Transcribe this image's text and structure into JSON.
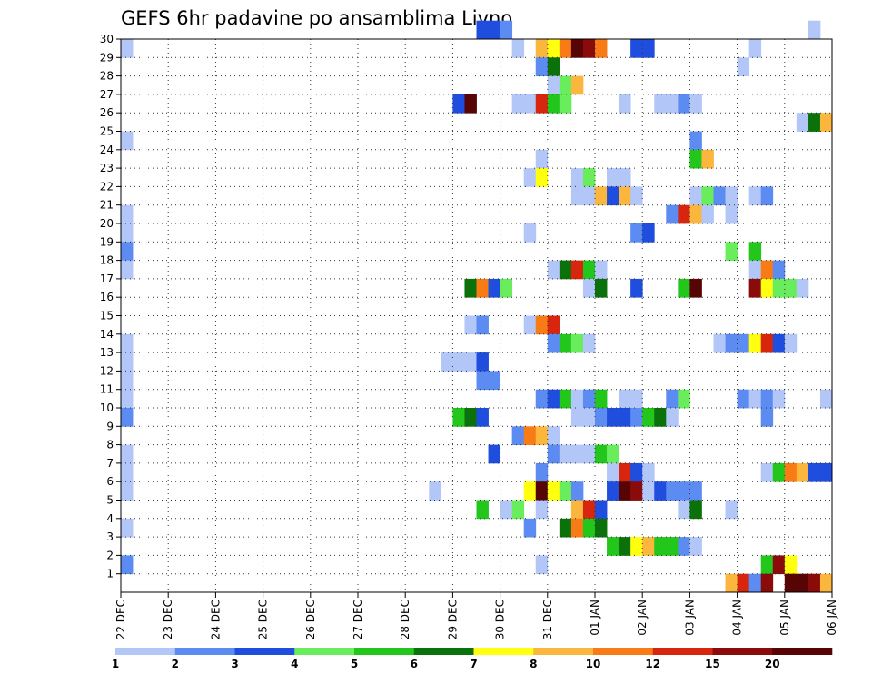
{
  "chart_data": {
    "type": "heatmap",
    "title": "GEFS 6hr padavine po ansamblima Livno",
    "x_ticks": [
      "22 DEC",
      "23 DEC",
      "24 DEC",
      "25 DEC",
      "26 DEC",
      "27 DEC",
      "28 DEC",
      "29 DEC",
      "30 DEC",
      "31 DEC",
      "01 JAN",
      "02 JAN",
      "03 JAN",
      "04 JAN",
      "05 JAN",
      "06 JAN"
    ],
    "y_ticks": [
      "1",
      "2",
      "3",
      "4",
      "5",
      "6",
      "7",
      "8",
      "9",
      "10",
      "11",
      "12",
      "13",
      "14",
      "15",
      "16",
      "17",
      "18",
      "19",
      "20",
      "21",
      "22",
      "23",
      "24",
      "25",
      "26",
      "27",
      "28",
      "29",
      "30"
    ],
    "y_range": [
      0,
      30
    ],
    "steps_per_day": 4,
    "grid": "dotted",
    "colorbar": {
      "tick_labels": [
        "1",
        "2",
        "3",
        "4",
        "5",
        "6",
        "7",
        "8",
        "10",
        "12",
        "15",
        "20"
      ],
      "colors": [
        "#b3c6f8",
        "#5c8cf2",
        "#1f4ede",
        "#69ed5c",
        "#23c71c",
        "#0b720b",
        "#ffff0f",
        "#fbb63e",
        "#f97b15",
        "#d8260e",
        "#8b0b0b",
        "#560404"
      ]
    },
    "cells": [
      {
        "member": 30,
        "step": 31,
        "level": 2
      },
      {
        "member": 30,
        "step": 32,
        "level": 2
      },
      {
        "member": 30,
        "step": 33,
        "level": 1
      },
      {
        "member": 30,
        "step": 59,
        "level": 0
      },
      {
        "member": 29,
        "step": 1,
        "level": 0
      },
      {
        "member": 29,
        "step": 34,
        "level": 0
      },
      {
        "member": 29,
        "step": 36,
        "level": 7
      },
      {
        "member": 29,
        "step": 37,
        "level": 6
      },
      {
        "member": 29,
        "step": 38,
        "level": 8
      },
      {
        "member": 29,
        "step": 39,
        "level": 11
      },
      {
        "member": 29,
        "step": 40,
        "level": 10
      },
      {
        "member": 29,
        "step": 41,
        "level": 8
      },
      {
        "member": 29,
        "step": 44,
        "level": 2
      },
      {
        "member": 29,
        "step": 45,
        "level": 2
      },
      {
        "member": 29,
        "step": 54,
        "level": 0
      },
      {
        "member": 28,
        "step": 36,
        "level": 1
      },
      {
        "member": 28,
        "step": 37,
        "level": 5
      },
      {
        "member": 28,
        "step": 53,
        "level": 0
      },
      {
        "member": 27,
        "step": 37,
        "level": 0
      },
      {
        "member": 27,
        "step": 38,
        "level": 3
      },
      {
        "member": 27,
        "step": 39,
        "level": 7
      },
      {
        "member": 26,
        "step": 29,
        "level": 2
      },
      {
        "member": 26,
        "step": 30,
        "level": 11
      },
      {
        "member": 26,
        "step": 34,
        "level": 0
      },
      {
        "member": 26,
        "step": 35,
        "level": 0
      },
      {
        "member": 26,
        "step": 36,
        "level": 9
      },
      {
        "member": 26,
        "step": 37,
        "level": 4
      },
      {
        "member": 26,
        "step": 38,
        "level": 3
      },
      {
        "member": 26,
        "step": 43,
        "level": 0
      },
      {
        "member": 26,
        "step": 46,
        "level": 0
      },
      {
        "member": 26,
        "step": 47,
        "level": 0
      },
      {
        "member": 26,
        "step": 48,
        "level": 1
      },
      {
        "member": 26,
        "step": 49,
        "level": 0
      },
      {
        "member": 25,
        "step": 58,
        "level": 0
      },
      {
        "member": 25,
        "step": 59,
        "level": 5
      },
      {
        "member": 25,
        "step": 60,
        "level": 7
      },
      {
        "member": 24,
        "step": 1,
        "level": 0
      },
      {
        "member": 24,
        "step": 49,
        "level": 1
      },
      {
        "member": 23,
        "step": 36,
        "level": 0
      },
      {
        "member": 23,
        "step": 49,
        "level": 4
      },
      {
        "member": 23,
        "step": 50,
        "level": 7
      },
      {
        "member": 22,
        "step": 35,
        "level": 0
      },
      {
        "member": 22,
        "step": 36,
        "level": 6
      },
      {
        "member": 22,
        "step": 39,
        "level": 0
      },
      {
        "member": 22,
        "step": 40,
        "level": 3
      },
      {
        "member": 22,
        "step": 42,
        "level": 0
      },
      {
        "member": 22,
        "step": 43,
        "level": 0
      },
      {
        "member": 21,
        "step": 39,
        "level": 0
      },
      {
        "member": 21,
        "step": 40,
        "level": 0
      },
      {
        "member": 21,
        "step": 41,
        "level": 7
      },
      {
        "member": 21,
        "step": 42,
        "level": 2
      },
      {
        "member": 21,
        "step": 43,
        "level": 7
      },
      {
        "member": 21,
        "step": 44,
        "level": 0
      },
      {
        "member": 21,
        "step": 49,
        "level": 0
      },
      {
        "member": 21,
        "step": 50,
        "level": 3
      },
      {
        "member": 21,
        "step": 51,
        "level": 1
      },
      {
        "member": 21,
        "step": 52,
        "level": 0
      },
      {
        "member": 21,
        "step": 54,
        "level": 0
      },
      {
        "member": 21,
        "step": 55,
        "level": 1
      },
      {
        "member": 20,
        "step": 1,
        "level": 0
      },
      {
        "member": 20,
        "step": 47,
        "level": 1
      },
      {
        "member": 20,
        "step": 48,
        "level": 9
      },
      {
        "member": 20,
        "step": 49,
        "level": 7
      },
      {
        "member": 20,
        "step": 50,
        "level": 0
      },
      {
        "member": 20,
        "step": 52,
        "level": 0
      },
      {
        "member": 19,
        "step": 1,
        "level": 0
      },
      {
        "member": 19,
        "step": 35,
        "level": 0
      },
      {
        "member": 19,
        "step": 44,
        "level": 1
      },
      {
        "member": 19,
        "step": 45,
        "level": 2
      },
      {
        "member": 18,
        "step": 1,
        "level": 1
      },
      {
        "member": 18,
        "step": 52,
        "level": 3
      },
      {
        "member": 18,
        "step": 54,
        "level": 4
      },
      {
        "member": 17,
        "step": 1,
        "level": 0
      },
      {
        "member": 17,
        "step": 37,
        "level": 0
      },
      {
        "member": 17,
        "step": 38,
        "level": 5
      },
      {
        "member": 17,
        "step": 39,
        "level": 9
      },
      {
        "member": 17,
        "step": 40,
        "level": 4
      },
      {
        "member": 17,
        "step": 41,
        "level": 0
      },
      {
        "member": 17,
        "step": 54,
        "level": 0
      },
      {
        "member": 17,
        "step": 55,
        "level": 8
      },
      {
        "member": 17,
        "step": 56,
        "level": 1
      },
      {
        "member": 16,
        "step": 30,
        "level": 5
      },
      {
        "member": 16,
        "step": 31,
        "level": 8
      },
      {
        "member": 16,
        "step": 32,
        "level": 2
      },
      {
        "member": 16,
        "step": 33,
        "level": 3
      },
      {
        "member": 16,
        "step": 40,
        "level": 0
      },
      {
        "member": 16,
        "step": 41,
        "level": 5
      },
      {
        "member": 16,
        "step": 44,
        "level": 2
      },
      {
        "member": 16,
        "step": 48,
        "level": 4
      },
      {
        "member": 16,
        "step": 49,
        "level": 11
      },
      {
        "member": 16,
        "step": 54,
        "level": 10
      },
      {
        "member": 16,
        "step": 55,
        "level": 6
      },
      {
        "member": 16,
        "step": 56,
        "level": 3
      },
      {
        "member": 16,
        "step": 57,
        "level": 3
      },
      {
        "member": 16,
        "step": 58,
        "level": 0
      },
      {
        "member": 14,
        "step": 30,
        "level": 0
      },
      {
        "member": 14,
        "step": 31,
        "level": 1
      },
      {
        "member": 14,
        "step": 35,
        "level": 0
      },
      {
        "member": 14,
        "step": 36,
        "level": 8
      },
      {
        "member": 14,
        "step": 37,
        "level": 9
      },
      {
        "member": 13,
        "step": 1,
        "level": 0
      },
      {
        "member": 13,
        "step": 37,
        "level": 1
      },
      {
        "member": 13,
        "step": 38,
        "level": 4
      },
      {
        "member": 13,
        "step": 39,
        "level": 3
      },
      {
        "member": 13,
        "step": 40,
        "level": 0
      },
      {
        "member": 13,
        "step": 51,
        "level": 0
      },
      {
        "member": 13,
        "step": 52,
        "level": 1
      },
      {
        "member": 13,
        "step": 53,
        "level": 1
      },
      {
        "member": 13,
        "step": 54,
        "level": 6
      },
      {
        "member": 13,
        "step": 55,
        "level": 9
      },
      {
        "member": 13,
        "step": 56,
        "level": 2
      },
      {
        "member": 13,
        "step": 57,
        "level": 0
      },
      {
        "member": 12,
        "step": 1,
        "level": 0
      },
      {
        "member": 12,
        "step": 28,
        "level": 0
      },
      {
        "member": 12,
        "step": 29,
        "level": 0
      },
      {
        "member": 12,
        "step": 30,
        "level": 0
      },
      {
        "member": 12,
        "step": 31,
        "level": 2
      },
      {
        "member": 11,
        "step": 1,
        "level": 0
      },
      {
        "member": 11,
        "step": 31,
        "level": 1
      },
      {
        "member": 11,
        "step": 32,
        "level": 1
      },
      {
        "member": 10,
        "step": 1,
        "level": 0
      },
      {
        "member": 10,
        "step": 36,
        "level": 1
      },
      {
        "member": 10,
        "step": 37,
        "level": 2
      },
      {
        "member": 10,
        "step": 38,
        "level": 4
      },
      {
        "member": 10,
        "step": 39,
        "level": 0
      },
      {
        "member": 10,
        "step": 40,
        "level": 1
      },
      {
        "member": 10,
        "step": 41,
        "level": 4
      },
      {
        "member": 10,
        "step": 43,
        "level": 0
      },
      {
        "member": 10,
        "step": 44,
        "level": 0
      },
      {
        "member": 10,
        "step": 47,
        "level": 1
      },
      {
        "member": 10,
        "step": 48,
        "level": 3
      },
      {
        "member": 10,
        "step": 53,
        "level": 1
      },
      {
        "member": 10,
        "step": 54,
        "level": 0
      },
      {
        "member": 10,
        "step": 55,
        "level": 1
      },
      {
        "member": 10,
        "step": 56,
        "level": 0
      },
      {
        "member": 10,
        "step": 60,
        "level": 0
      },
      {
        "member": 9,
        "step": 1,
        "level": 1
      },
      {
        "member": 9,
        "step": 29,
        "level": 4
      },
      {
        "member": 9,
        "step": 30,
        "level": 5
      },
      {
        "member": 9,
        "step": 31,
        "level": 2
      },
      {
        "member": 9,
        "step": 39,
        "level": 0
      },
      {
        "member": 9,
        "step": 40,
        "level": 0
      },
      {
        "member": 9,
        "step": 41,
        "level": 1
      },
      {
        "member": 9,
        "step": 42,
        "level": 2
      },
      {
        "member": 9,
        "step": 43,
        "level": 2
      },
      {
        "member": 9,
        "step": 44,
        "level": 1
      },
      {
        "member": 9,
        "step": 45,
        "level": 4
      },
      {
        "member": 9,
        "step": 46,
        "level": 5
      },
      {
        "member": 9,
        "step": 47,
        "level": 0
      },
      {
        "member": 9,
        "step": 55,
        "level": 1
      },
      {
        "member": 8,
        "step": 34,
        "level": 1
      },
      {
        "member": 8,
        "step": 35,
        "level": 8
      },
      {
        "member": 8,
        "step": 36,
        "level": 7
      },
      {
        "member": 8,
        "step": 37,
        "level": 0
      },
      {
        "member": 7,
        "step": 1,
        "level": 0
      },
      {
        "member": 7,
        "step": 32,
        "level": 2
      },
      {
        "member": 7,
        "step": 37,
        "level": 1
      },
      {
        "member": 7,
        "step": 38,
        "level": 0
      },
      {
        "member": 7,
        "step": 39,
        "level": 0
      },
      {
        "member": 7,
        "step": 40,
        "level": 0
      },
      {
        "member": 7,
        "step": 41,
        "level": 4
      },
      {
        "member": 7,
        "step": 42,
        "level": 3
      },
      {
        "member": 6,
        "step": 1,
        "level": 0
      },
      {
        "member": 6,
        "step": 36,
        "level": 1
      },
      {
        "member": 6,
        "step": 42,
        "level": 0
      },
      {
        "member": 6,
        "step": 43,
        "level": 9
      },
      {
        "member": 6,
        "step": 44,
        "level": 2
      },
      {
        "member": 6,
        "step": 45,
        "level": 0
      },
      {
        "member": 6,
        "step": 55,
        "level": 0
      },
      {
        "member": 6,
        "step": 56,
        "level": 4
      },
      {
        "member": 6,
        "step": 57,
        "level": 8
      },
      {
        "member": 6,
        "step": 58,
        "level": 7
      },
      {
        "member": 6,
        "step": 59,
        "level": 2
      },
      {
        "member": 6,
        "step": 60,
        "level": 2
      },
      {
        "member": 5,
        "step": 1,
        "level": 0
      },
      {
        "member": 5,
        "step": 27,
        "level": 0
      },
      {
        "member": 5,
        "step": 35,
        "level": 6
      },
      {
        "member": 5,
        "step": 36,
        "level": 11
      },
      {
        "member": 5,
        "step": 37,
        "level": 6
      },
      {
        "member": 5,
        "step": 38,
        "level": 3
      },
      {
        "member": 5,
        "step": 39,
        "level": 1
      },
      {
        "member": 5,
        "step": 42,
        "level": 2
      },
      {
        "member": 5,
        "step": 43,
        "level": 11
      },
      {
        "member": 5,
        "step": 44,
        "level": 10
      },
      {
        "member": 5,
        "step": 45,
        "level": 0
      },
      {
        "member": 5,
        "step": 46,
        "level": 2
      },
      {
        "member": 5,
        "step": 47,
        "level": 1
      },
      {
        "member": 5,
        "step": 48,
        "level": 1
      },
      {
        "member": 5,
        "step": 49,
        "level": 1
      },
      {
        "member": 4,
        "step": 31,
        "level": 4
      },
      {
        "member": 4,
        "step": 33,
        "level": 0
      },
      {
        "member": 4,
        "step": 34,
        "level": 3
      },
      {
        "member": 4,
        "step": 36,
        "level": 0
      },
      {
        "member": 4,
        "step": 39,
        "level": 7
      },
      {
        "member": 4,
        "step": 40,
        "level": 9
      },
      {
        "member": 4,
        "step": 41,
        "level": 2
      },
      {
        "member": 4,
        "step": 48,
        "level": 0
      },
      {
        "member": 4,
        "step": 49,
        "level": 5
      },
      {
        "member": 4,
        "step": 52,
        "level": 0
      },
      {
        "member": 3,
        "step": 1,
        "level": 0
      },
      {
        "member": 3,
        "step": 35,
        "level": 1
      },
      {
        "member": 3,
        "step": 38,
        "level": 5
      },
      {
        "member": 3,
        "step": 39,
        "level": 8
      },
      {
        "member": 3,
        "step": 40,
        "level": 4
      },
      {
        "member": 3,
        "step": 41,
        "level": 5
      },
      {
        "member": 2,
        "step": 42,
        "level": 4
      },
      {
        "member": 2,
        "step": 43,
        "level": 5
      },
      {
        "member": 2,
        "step": 44,
        "level": 6
      },
      {
        "member": 2,
        "step": 45,
        "level": 7
      },
      {
        "member": 2,
        "step": 46,
        "level": 4
      },
      {
        "member": 2,
        "step": 47,
        "level": 4
      },
      {
        "member": 2,
        "step": 48,
        "level": 1
      },
      {
        "member": 2,
        "step": 49,
        "level": 0
      },
      {
        "member": 1,
        "step": 1,
        "level": 1
      },
      {
        "member": 1,
        "step": 36,
        "level": 0
      },
      {
        "member": 1,
        "step": 55,
        "level": 4
      },
      {
        "member": 1,
        "step": 56,
        "level": 10
      },
      {
        "member": 1,
        "step": 57,
        "level": 6
      },
      {
        "member": 0,
        "step": 52,
        "level": 7
      },
      {
        "member": 0,
        "step": 53,
        "level": 9
      },
      {
        "member": 0,
        "step": 54,
        "level": 1
      },
      {
        "member": 0,
        "step": 55,
        "level": 10
      },
      {
        "member": 0,
        "step": 57,
        "level": 11
      },
      {
        "member": 0,
        "step": 58,
        "level": 11
      },
      {
        "member": 0,
        "step": 59,
        "level": 10
      },
      {
        "member": 0,
        "step": 60,
        "level": 7
      }
    ]
  }
}
